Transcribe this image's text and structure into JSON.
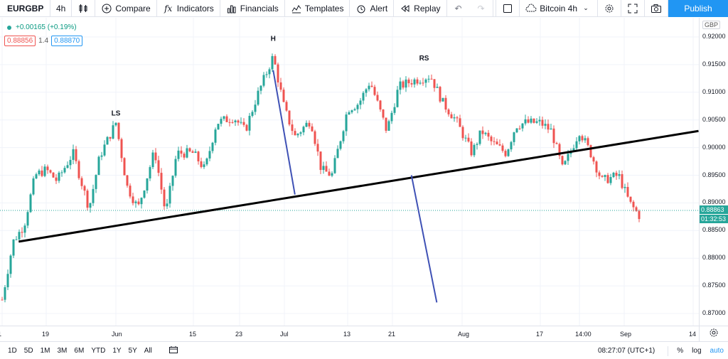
{
  "toolbar": {
    "symbol": "EURGBP",
    "interval": "4h",
    "compare": "Compare",
    "indicators": "Indicators",
    "financials": "Financials",
    "templates": "Templates",
    "alert": "Alert",
    "replay": "Replay",
    "layout_name": "Bitcoin 4h",
    "publish": "Publish"
  },
  "legend": {
    "change": "+0.00165 (+0.19%)",
    "bid": "0.88856",
    "spread": "1.4",
    "ask": "0.88870"
  },
  "price_axis": {
    "currency": "GBP",
    "labels": [
      "0.92000",
      "0.91500",
      "0.91000",
      "0.90500",
      "0.90000",
      "0.89500",
      "0.89000",
      "0.88500",
      "0.88000",
      "0.87500",
      "0.87000"
    ],
    "last_price": "0.88863",
    "countdown": "01:32:53"
  },
  "time_axis": {
    "labels": [
      "1",
      "19",
      "Jun",
      "15",
      "23",
      "Jul",
      "13",
      "21",
      "Aug",
      "17",
      "14:00",
      "Sep",
      "14"
    ]
  },
  "annotations": {
    "ls": "LS",
    "h": "H",
    "rs": "RS"
  },
  "bottom": {
    "ranges": [
      "1D",
      "5D",
      "1M",
      "3M",
      "6M",
      "YTD",
      "1Y",
      "5Y",
      "All"
    ],
    "clock": "08:27:07 (UTC+1)",
    "percent": "%",
    "log": "log",
    "auto": "auto"
  },
  "colors": {
    "up": "#26a69a",
    "down": "#ef5350",
    "accent": "#2196f3",
    "neckline": "#000000",
    "projection": "#3f51b5"
  },
  "chart_data": {
    "type": "candlestick",
    "symbol": "EURGBP",
    "interval": "4h",
    "ylim": [
      0.8675,
      0.9225
    ],
    "price_path": [
      {
        "x": "May 11",
        "y": 0.8725
      },
      {
        "x": "May 13",
        "y": 0.883
      },
      {
        "x": "May 15",
        "y": 0.886
      },
      {
        "x": "May 17",
        "y": 0.895
      },
      {
        "x": "May 19",
        "y": 0.896
      },
      {
        "x": "May 21",
        "y": 0.894
      },
      {
        "x": "May 24",
        "y": 0.899
      },
      {
        "x": "May 27",
        "y": 0.889
      },
      {
        "x": "May 29",
        "y": 0.8985
      },
      {
        "x": "Jun 1",
        "y": 0.9045
      },
      {
        "x": "Jun 3",
        "y": 0.893
      },
      {
        "x": "Jun 5",
        "y": 0.889
      },
      {
        "x": "Jun 8",
        "y": 0.8995
      },
      {
        "x": "Jun 10",
        "y": 0.888
      },
      {
        "x": "Jun 12",
        "y": 0.899
      },
      {
        "x": "Jun 15",
        "y": 0.899
      },
      {
        "x": "Jun 17",
        "y": 0.896
      },
      {
        "x": "Jun 19",
        "y": 0.9045
      },
      {
        "x": "Jun 22",
        "y": 0.9055
      },
      {
        "x": "Jun 24",
        "y": 0.903
      },
      {
        "x": "Jun 26",
        "y": 0.909
      },
      {
        "x": "Jun 29",
        "y": 0.9165
      },
      {
        "x": "Jul 1",
        "y": 0.907
      },
      {
        "x": "Jul 3",
        "y": 0.902
      },
      {
        "x": "Jul 6",
        "y": 0.905
      },
      {
        "x": "Jul 8",
        "y": 0.896
      },
      {
        "x": "Jul 10",
        "y": 0.895
      },
      {
        "x": "Jul 13",
        "y": 0.907
      },
      {
        "x": "Jul 15",
        "y": 0.908
      },
      {
        "x": "Jul 17",
        "y": 0.912
      },
      {
        "x": "Jul 20",
        "y": 0.903
      },
      {
        "x": "Jul 22",
        "y": 0.911
      },
      {
        "x": "Jul 24",
        "y": 0.912
      },
      {
        "x": "Jul 27",
        "y": 0.913
      },
      {
        "x": "Jul 29",
        "y": 0.908
      },
      {
        "x": "Jul 31",
        "y": 0.905
      },
      {
        "x": "Aug 3",
        "y": 0.899
      },
      {
        "x": "Aug 5",
        "y": 0.903
      },
      {
        "x": "Aug 7",
        "y": 0.901
      },
      {
        "x": "Aug 10",
        "y": 0.899
      },
      {
        "x": "Aug 12",
        "y": 0.904
      },
      {
        "x": "Aug 14",
        "y": 0.9045
      },
      {
        "x": "Aug 17",
        "y": 0.9045
      },
      {
        "x": "Aug 19",
        "y": 0.903
      },
      {
        "x": "Aug 21",
        "y": 0.896
      },
      {
        "x": "Aug 24",
        "y": 0.903
      },
      {
        "x": "Aug 26",
        "y": 0.899
      },
      {
        "x": "Aug 28",
        "y": 0.894
      },
      {
        "x": "Aug 31",
        "y": 0.895
      },
      {
        "x": "Sep 2",
        "y": 0.89
      },
      {
        "x": "Sep 4",
        "y": 0.8875
      }
    ],
    "drawings": [
      {
        "type": "neckline",
        "from": {
          "x": "May 14",
          "y": 0.883
        },
        "to": {
          "x": "Sep 15",
          "y": 0.903
        }
      },
      {
        "type": "measure",
        "from": {
          "x": "Jun 29",
          "y": 0.914
        },
        "to": {
          "x": "Jul 3",
          "y": 0.8915
        }
      },
      {
        "type": "projection",
        "from": {
          "x": "Jul 24",
          "y": 0.895
        },
        "to": {
          "x": "Jul 28",
          "y": 0.872
        }
      }
    ],
    "labels": [
      {
        "text": "LS",
        "x": "Jun 1",
        "y": 0.905
      },
      {
        "text": "H",
        "x": "Jun 29",
        "y": 0.9185
      },
      {
        "text": "RS",
        "x": "Jul 26",
        "y": 0.915
      }
    ]
  }
}
